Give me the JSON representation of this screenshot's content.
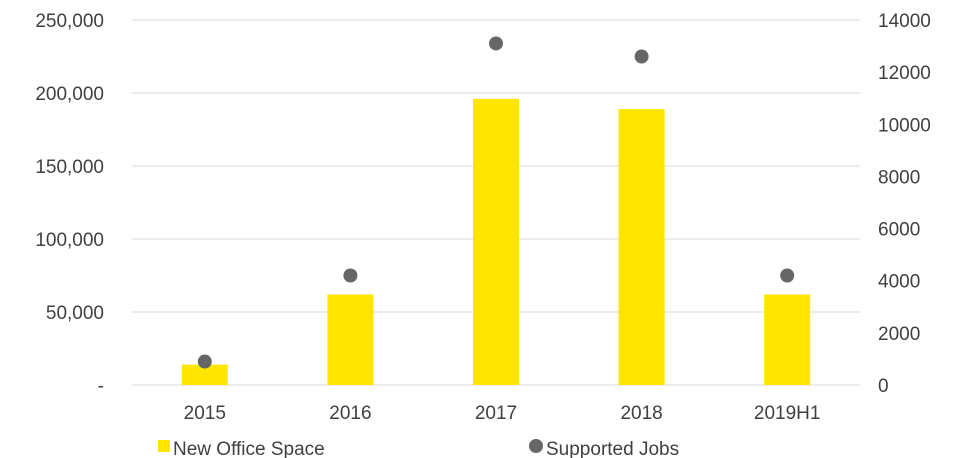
{
  "chart_data": {
    "type": "bar",
    "categories": [
      "2015",
      "2016",
      "2017",
      "2018",
      "2019H1"
    ],
    "series": [
      {
        "name": "New Office Space",
        "type": "bar",
        "axis": "left",
        "color": "#FFE600",
        "values": [
          14000,
          62000,
          196000,
          189000,
          62000
        ]
      },
      {
        "name": "Supported Jobs",
        "type": "scatter",
        "axis": "right",
        "color": "#666666",
        "values": [
          900,
          4200,
          13100,
          12600,
          4200
        ]
      }
    ],
    "left_axis": {
      "ylim": [
        0,
        250000
      ],
      "ticks": [
        0,
        50000,
        100000,
        150000,
        200000,
        250000
      ],
      "tick_labels": [
        "-",
        "50,000",
        "100,000",
        "150,000",
        "200,000",
        "250,000"
      ]
    },
    "right_axis": {
      "ylim": [
        0,
        14000
      ],
      "ticks": [
        0,
        2000,
        4000,
        6000,
        8000,
        10000,
        12000,
        14000
      ],
      "tick_labels": [
        "0",
        "2000",
        "4000",
        "6000",
        "8000",
        "10000",
        "12000",
        "14000"
      ]
    },
    "grid": true,
    "legend": "bottom-center",
    "gridline_color": "#D9D9D9"
  }
}
